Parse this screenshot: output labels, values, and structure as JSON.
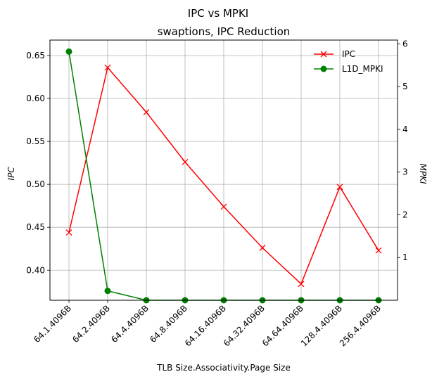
{
  "chart_data": {
    "type": "line",
    "title": "IPC vs MPKI",
    "subtitle": "swaptions, IPC Reduction",
    "xlabel": "TLB Size.Associativity.Page Size",
    "ylabel_left": "IPC",
    "ylabel_right": "MPKI",
    "categories": [
      "64.1.4096B",
      "64.2.4096B",
      "64.4.4096B",
      "64.8.4096B",
      "64.16.4096B",
      "64.32.4096B",
      "64.64.4096B",
      "128.4.4096B",
      "256.4.4096B"
    ],
    "ylim_left": [
      0.365,
      0.668
    ],
    "ylim_right": [
      0.0,
      6.09
    ],
    "yticks_left": [
      "0.40",
      "0.45",
      "0.50",
      "0.55",
      "0.60",
      "0.65"
    ],
    "yticks_right": [
      "1",
      "2",
      "3",
      "4",
      "5",
      "6"
    ],
    "grid": true,
    "legend_position": "top-right",
    "series": [
      {
        "name": "IPC",
        "axis": "left",
        "marker": "x",
        "color": "#ff0000",
        "values": [
          0.444,
          0.636,
          0.584,
          0.526,
          0.474,
          0.426,
          0.384,
          0.497,
          0.423
        ]
      },
      {
        "name": "L1D_MPKI",
        "axis": "right",
        "marker": "o",
        "color": "#008000",
        "values": [
          5.82,
          0.22,
          0.0,
          0.0,
          0.0,
          0.0,
          0.0,
          0.0,
          0.0
        ]
      }
    ]
  }
}
